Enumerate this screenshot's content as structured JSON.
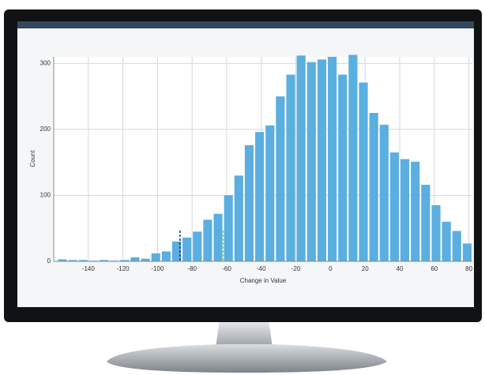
{
  "chart_data": {
    "type": "histogram",
    "x_label": "Change in Value",
    "y_label": "Count",
    "bins": [
      -158,
      -152,
      -146,
      -140,
      -134,
      -128,
      -122,
      -116,
      -110,
      -104,
      -98,
      -92,
      -86,
      -80,
      -74,
      -68,
      -62,
      -56,
      -50,
      -44,
      -38,
      -32,
      -26,
      -20,
      -14,
      -8,
      -2,
      4,
      10,
      16,
      22,
      28,
      34,
      40,
      46,
      52,
      58,
      64,
      70,
      76,
      82
    ],
    "values": [
      3,
      2,
      2,
      1,
      2,
      1,
      2,
      6,
      4,
      12,
      15,
      30,
      36,
      45,
      63,
      72,
      100,
      130,
      176,
      196,
      206,
      250,
      283,
      312,
      302,
      306,
      310,
      283,
      313,
      271,
      225,
      207,
      165,
      155,
      151,
      116,
      85,
      60,
      46,
      27
    ],
    "color": "#5aaee0",
    "xlim": [
      -160,
      82
    ],
    "ylim": [
      0,
      310
    ],
    "xticks": [
      -140,
      -120,
      -100,
      -80,
      -60,
      -40,
      -20,
      0,
      20,
      40,
      60,
      80
    ],
    "yticks": [
      0,
      100,
      200,
      300
    ],
    "grid": true,
    "reference_lines": [
      {
        "value": -87,
        "color": "#1a2a6a"
      },
      {
        "value": -62,
        "color": "#8cd84a"
      }
    ]
  }
}
